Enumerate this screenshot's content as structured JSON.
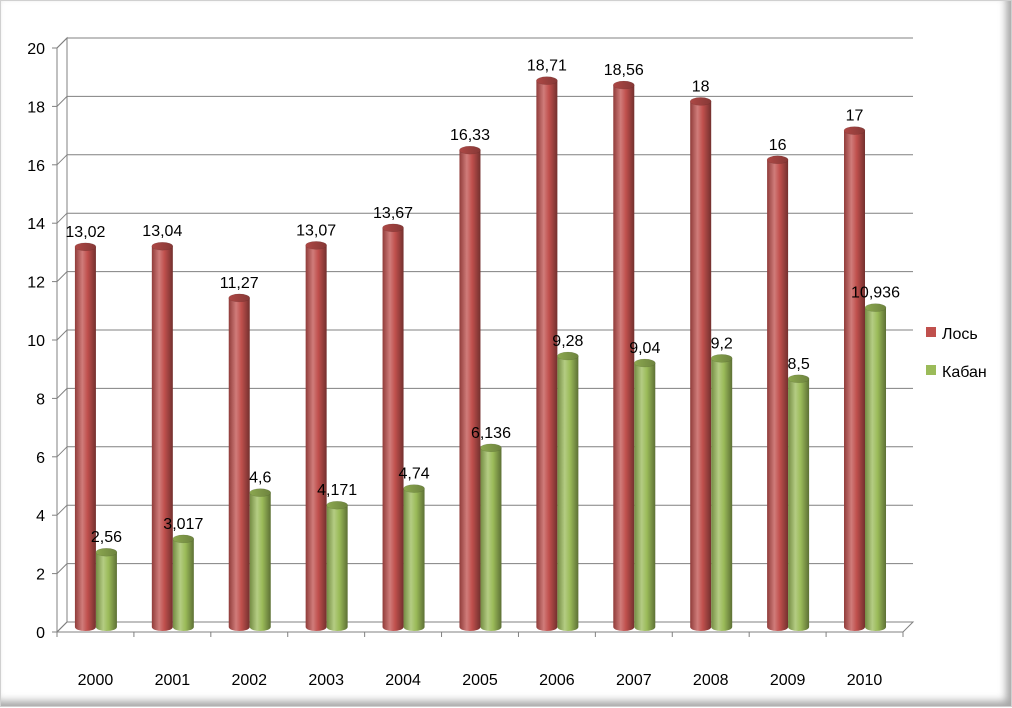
{
  "chart_data": {
    "type": "bar",
    "categories": [
      "2000",
      "2001",
      "2002",
      "2003",
      "2004",
      "2005",
      "2006",
      "2007",
      "2008",
      "2009",
      "2010"
    ],
    "series": [
      {
        "name": "Лось",
        "color": "#c0504d",
        "values": [
          13.02,
          13.04,
          11.27,
          13.07,
          13.67,
          16.33,
          18.71,
          18.56,
          18,
          16,
          17
        ],
        "labels": [
          "13,02",
          "13,04",
          "11,27",
          "13,07",
          "13,67",
          "16,33",
          "18,71",
          "18,56",
          "18",
          "16",
          "17"
        ]
      },
      {
        "name": "Кабан",
        "color": "#9bbb59",
        "values": [
          2.56,
          3.017,
          4.6,
          4.171,
          4.74,
          6.136,
          9.28,
          9.04,
          9.2,
          8.5,
          10.936
        ],
        "labels": [
          "2,56",
          "3,017",
          "4,6",
          "4,171",
          "4,74",
          "6,136",
          "9,28",
          "9,04",
          "9,2",
          "8,5",
          "10,936"
        ]
      }
    ],
    "ylim": [
      0,
      20
    ],
    "yticks": [
      "0",
      "2",
      "4",
      "6",
      "8",
      "10",
      "12",
      "14",
      "16",
      "18",
      "20"
    ],
    "grid": true,
    "legend": "right",
    "style": "3d-cylinder"
  }
}
